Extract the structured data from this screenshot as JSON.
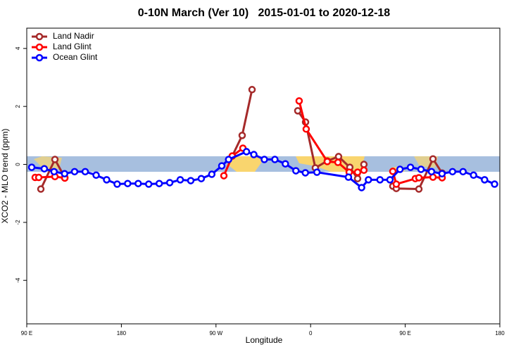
{
  "chart_data": {
    "type": "line",
    "title": "0-10N March (Ver 10)   2015-01-01 to 2020-12-18",
    "x_label": "Longitude",
    "y_label": "XCO2 - MLO trend (ppm)",
    "xlim": [
      90,
      540
    ],
    "xticks": [
      {
        "value": 90,
        "label": "90 E"
      },
      180,
      {
        "value": 270,
        "label": "90 W"
      },
      {
        "value": 360,
        "label": "0"
      },
      {
        "value": 450,
        "label": "90 E"
      },
      {
        "value": 540,
        "label": "180"
      }
    ],
    "ylim": [
      -5.5,
      4.7
    ],
    "yticks": [
      -4,
      -2,
      0,
      2,
      4
    ],
    "legend": "top-left",
    "series": [
      {
        "name": "Land Nadir",
        "color": "#a52a2a",
        "x": [
          103.4,
          116.8,
          126.2,
          null,
          285.5,
          294.9,
          304.3,
          null,
          347.8,
          355.2,
          364.5,
          375.9,
          386.6,
          397.3,
          404.7,
          410.7,
          null,
          438.2,
          441.5,
          463,
          476.4,
          485.1
        ],
        "values": [
          -0.85,
          0.17,
          -0.45,
          null,
          0.29,
          1.0,
          2.58,
          null,
          1.85,
          1.46,
          -0.12,
          0.12,
          0.27,
          -0.1,
          -0.49,
          0.0,
          null,
          -0.75,
          -0.83,
          -0.85,
          0.19,
          -0.3
        ]
      },
      {
        "name": "Land Glint",
        "color": "#ff0000",
        "x": [
          98,
          101.4,
          116.8,
          126.2,
          null,
          277.5,
          285.5,
          295.6,
          null,
          349.1,
          355.8,
          375.9,
          386,
          396.7,
          404.7,
          410.7,
          null,
          438.2,
          441.5,
          459.6,
          463,
          476.4,
          485.1
        ],
        "values": [
          -0.45,
          -0.45,
          -0.42,
          -0.47,
          null,
          -0.39,
          0.29,
          0.56,
          null,
          2.19,
          1.22,
          0.1,
          0.07,
          -0.27,
          -0.27,
          -0.2,
          null,
          -0.24,
          -0.68,
          -0.49,
          -0.46,
          -0.44,
          -0.46
        ]
      },
      {
        "name": "Ocean Glint",
        "color": "#0000ff",
        "x": [
          94.7,
          106.7,
          116,
          126,
          135.5,
          145.6,
          156,
          166,
          176,
          186,
          196,
          206,
          216,
          226,
          236,
          246,
          256,
          266,
          275.5,
          282,
          299,
          306,
          316,
          326,
          336,
          346,
          355,
          366,
          396,
          408.5,
          415,
          426,
          435.5,
          445,
          455,
          465,
          475,
          485,
          495,
          505,
          515,
          525.5,
          535
        ],
        "values": [
          -0.1,
          -0.15,
          -0.25,
          -0.32,
          -0.25,
          -0.25,
          -0.37,
          -0.53,
          -0.68,
          -0.66,
          -0.66,
          -0.68,
          -0.66,
          -0.63,
          -0.53,
          -0.56,
          -0.49,
          -0.34,
          -0.05,
          0.17,
          0.44,
          0.34,
          0.17,
          0.17,
          0.02,
          -0.22,
          -0.29,
          -0.27,
          -0.44,
          -0.8,
          -0.53,
          -0.53,
          -0.53,
          -0.17,
          -0.1,
          -0.17,
          -0.25,
          -0.32,
          -0.25,
          -0.25,
          -0.37,
          -0.53,
          -0.68
        ]
      }
    ]
  }
}
